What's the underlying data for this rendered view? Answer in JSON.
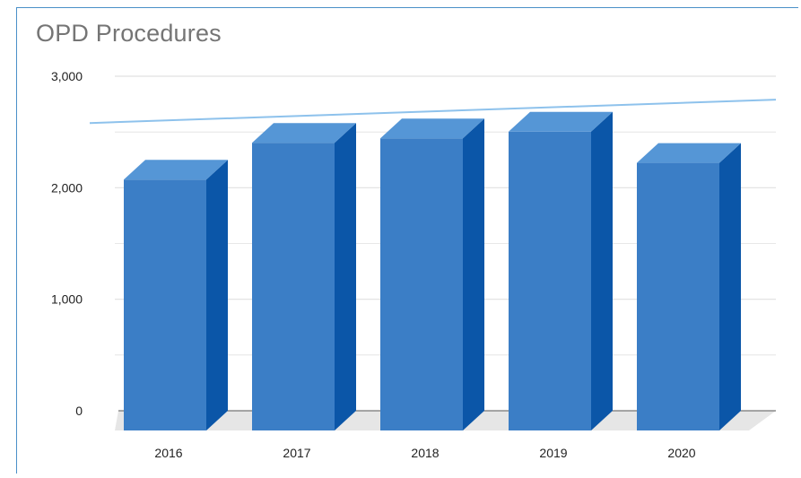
{
  "chart_data": {
    "type": "bar",
    "title": "OPD Procedures",
    "xlabel": "",
    "ylabel": "",
    "categories": [
      "2016",
      "2017",
      "2018",
      "2019",
      "2020"
    ],
    "values": [
      2250,
      2580,
      2620,
      2680,
      2400
    ],
    "ylim": [
      0,
      3000
    ],
    "yticks": [
      "0",
      "1,000",
      "2,000",
      "3,000"
    ],
    "grid": true,
    "trendline": {
      "start": 2580,
      "end": 2790
    },
    "colors": {
      "bar_front": "#3b7ec6",
      "bar_top": "#5596d6",
      "bar_side": "#0b56a8",
      "trendline": "#8ec2ec",
      "grid": "#e0e0e0",
      "floor": "#e6e6e6"
    }
  }
}
